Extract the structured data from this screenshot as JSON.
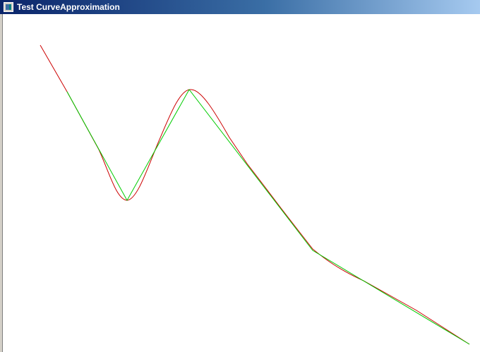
{
  "window": {
    "title": "Test CurveApproximation",
    "icon": "app-window-icon"
  },
  "colors": {
    "titlebar_start": "#0a246a",
    "titlebar_end": "#a6caf0",
    "polyline": "#00cc00",
    "curve": "#cc0000",
    "canvas_bg": "#ffffff"
  }
}
